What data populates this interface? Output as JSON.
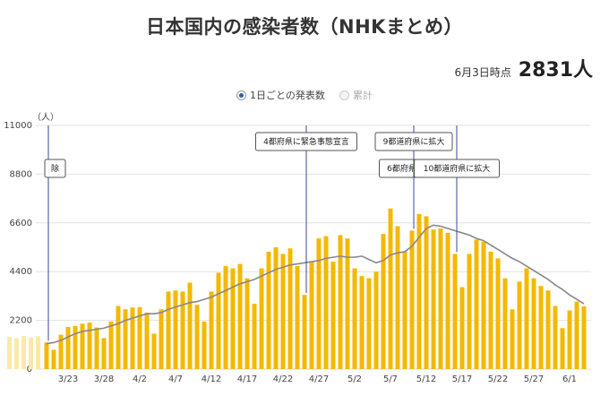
{
  "header": {
    "title": "日本国内の感染者数（NHKまとめ）",
    "as_of_label": "6月3日時点",
    "as_of_value": "2831人"
  },
  "legend": {
    "daily_label": "1日ごとの発表数",
    "cumulative_label": "累計"
  },
  "colors": {
    "bar": "#f5b800",
    "bar_faded": "#fbe9a8",
    "line": "#888888",
    "grid": "#e2e2e2",
    "event_line": "#3a4a9a",
    "radio_on": "#3a5aa8"
  },
  "chart_data": {
    "type": "bar",
    "y_unit_label": "（人）",
    "ylim": [
      0,
      11000
    ],
    "y_ticks": [
      0,
      2200,
      4400,
      6600,
      8800,
      11000
    ],
    "grid": true,
    "x_tick_labels": [
      "3/23",
      "3/28",
      "4/2",
      "4/7",
      "4/12",
      "4/17",
      "4/22",
      "4/27",
      "5/2",
      "5/7",
      "5/12",
      "5/17",
      "5/22",
      "5/27",
      "6/1"
    ],
    "x_tick_indices": [
      3,
      8,
      13,
      18,
      23,
      28,
      33,
      38,
      43,
      48,
      53,
      58,
      63,
      68,
      73
    ],
    "faded_values": [
      1450,
      1400,
      1500,
      1420,
      1480
    ],
    "values": [
      1200,
      870,
      1550,
      1900,
      1950,
      2050,
      2100,
      1880,
      1400,
      2150,
      2850,
      2700,
      2780,
      2800,
      2550,
      1600,
      2700,
      3500,
      3550,
      3500,
      3900,
      2900,
      2150,
      3500,
      4350,
      4650,
      4550,
      4750,
      4100,
      2950,
      4550,
      5300,
      5500,
      5200,
      5450,
      4650,
      3350,
      4850,
      5900,
      6000,
      4850,
      6050,
      5900,
      4550,
      4200,
      4100,
      4400,
      6100,
      7250,
      6450,
      5300,
      6250,
      7000,
      6900,
      6300,
      6350,
      6150,
      5200,
      3700,
      5200,
      5850,
      5750,
      5300,
      5000,
      4100,
      2700,
      3950,
      4550,
      4100,
      3750,
      3550,
      2850,
      1850,
      2650,
      3050,
      2831
    ],
    "moving_average": [
      1150,
      1200,
      1300,
      1450,
      1600,
      1700,
      1750,
      1800,
      1850,
      1950,
      2050,
      2200,
      2300,
      2400,
      2500,
      2500,
      2550,
      2700,
      2800,
      2900,
      3000,
      3050,
      3150,
      3250,
      3400,
      3550,
      3700,
      3850,
      3950,
      4050,
      4200,
      4350,
      4500,
      4600,
      4700,
      4750,
      4800,
      4850,
      4900,
      5000,
      5050,
      5100,
      5050,
      5050,
      5100,
      4950,
      4800,
      4900,
      5150,
      5250,
      5300,
      5550,
      5950,
      6350,
      6500,
      6450,
      6350,
      6250,
      6150,
      6050,
      5900,
      5800,
      5600,
      5400,
      5200,
      5000,
      4850,
      4650,
      4450,
      4250,
      4050,
      3800,
      3600,
      3350,
      3150,
      2950
    ],
    "annotations": [
      {
        "text": "除",
        "index": 0,
        "row": 3
      },
      {
        "text": "4都府県に緊急事態宣言",
        "index": 36,
        "row": 1
      },
      {
        "text": "6都府県に拡大",
        "index": 51,
        "row": 2
      },
      {
        "text": "9都道府県に拡大",
        "index": 51,
        "row": 1
      },
      {
        "text": "10都道府県に拡大",
        "index": 57,
        "row": 2
      }
    ]
  }
}
